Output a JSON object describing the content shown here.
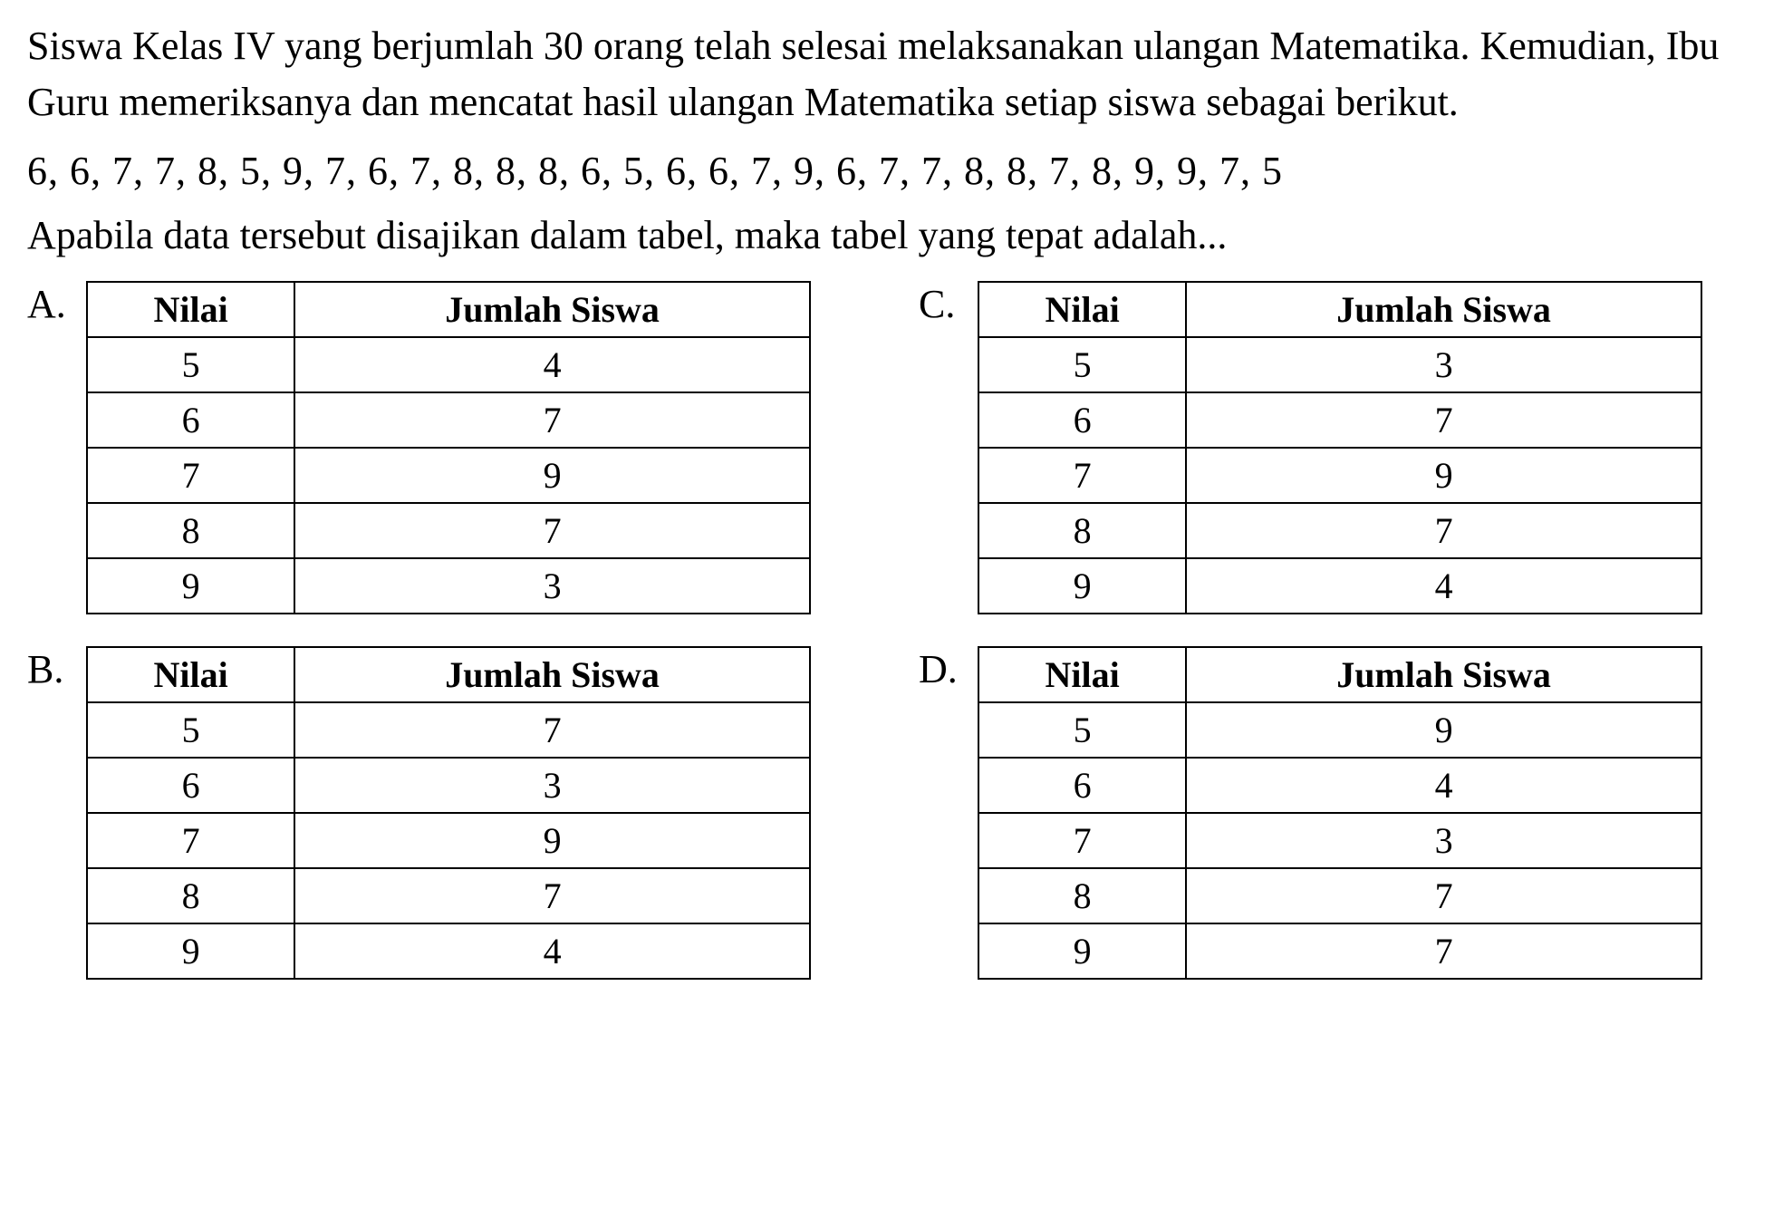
{
  "question": {
    "intro_text": "Siswa Kelas IV yang berjumlah 30 orang telah selesai melaksanakan ulangan Matematika. Kemudian, Ibu Guru memeriksanya dan mencatat hasil ulangan Matematika setiap siswa sebagai berikut.",
    "data_sequence": "6, 6, 7, 7, 8, 5, 9, 7, 6, 7,  8, 8, 8, 6, 5, 6, 6, 7, 9, 6,  7, 7, 8, 8, 7, 8, 9, 9, 7, 5",
    "sub_text": "Apabila data tersebut  disajikan dalam  tabel, maka tabel yang tepat adalah..."
  },
  "table_headers": {
    "col1": "Nilai",
    "col2": "Jumlah Siswa"
  },
  "options": {
    "a": {
      "label": "A.",
      "rows": [
        {
          "nilai": "5",
          "jumlah": "4"
        },
        {
          "nilai": "6",
          "jumlah": "7"
        },
        {
          "nilai": "7",
          "jumlah": "9"
        },
        {
          "nilai": "8",
          "jumlah": "7"
        },
        {
          "nilai": "9",
          "jumlah": "3"
        }
      ]
    },
    "b": {
      "label": "B.",
      "rows": [
        {
          "nilai": "5",
          "jumlah": "7"
        },
        {
          "nilai": "6",
          "jumlah": "3"
        },
        {
          "nilai": "7",
          "jumlah": "9"
        },
        {
          "nilai": "8",
          "jumlah": "7"
        },
        {
          "nilai": "9",
          "jumlah": "4"
        }
      ]
    },
    "c": {
      "label": "C.",
      "rows": [
        {
          "nilai": "5",
          "jumlah": "3"
        },
        {
          "nilai": "6",
          "jumlah": "7"
        },
        {
          "nilai": "7",
          "jumlah": "9"
        },
        {
          "nilai": "8",
          "jumlah": "7"
        },
        {
          "nilai": "9",
          "jumlah": "4"
        }
      ]
    },
    "d": {
      "label": "D.",
      "rows": [
        {
          "nilai": "5",
          "jumlah": "9"
        },
        {
          "nilai": "6",
          "jumlah": "4"
        },
        {
          "nilai": "7",
          "jumlah": "3"
        },
        {
          "nilai": "8",
          "jumlah": "7"
        },
        {
          "nilai": "9",
          "jumlah": "7"
        }
      ]
    }
  }
}
